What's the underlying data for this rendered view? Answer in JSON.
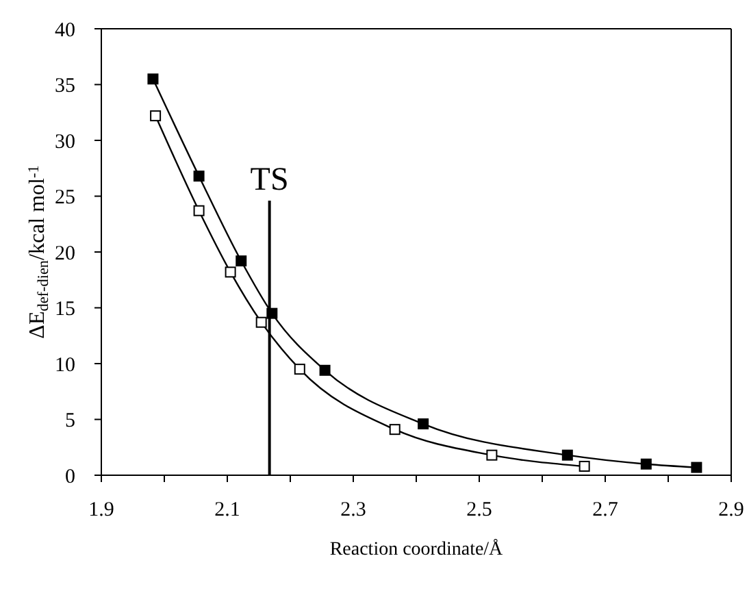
{
  "chart_data": {
    "type": "line",
    "xlabel": "Reaction coordinate/Å",
    "ylabel": "ΔE$_{def-dien}$/kcal mol$^{-1}$",
    "series": [
      {
        "color": "#000000",
        "marker": "square",
        "x": [
          1.982,
          2.055,
          2.122,
          2.171,
          2.255,
          2.411,
          2.64,
          2.765,
          2.845
        ],
        "values": [
          35.5,
          26.8,
          19.2,
          14.5,
          9.4,
          4.6,
          1.8,
          1.0,
          0.7
        ]
      },
      {
        "color": "#000000",
        "marker": "square",
        "x": [
          1.986,
          2.055,
          2.105,
          2.154,
          2.215,
          2.366,
          2.52,
          2.667
        ],
        "values": [
          32.2,
          23.7,
          18.2,
          13.7,
          9.5,
          4.1,
          1.8,
          0.8
        ]
      },
      {
        "color": "#000000",
        "marker": "none",
        "x": [
          2.167,
          2.167
        ],
        "values": [
          0,
          24.6
        ]
      }
    ],
    "annotations": [
      {
        "text": "TS",
        "x": 2.167,
        "y": 24.6
      }
    ],
    "xlim": [
      1.9,
      2.9
    ],
    "ylim": [
      0,
      40
    ],
    "xticks": [
      1.9,
      {
        "value": 2.0,
        "label": null
      },
      2.1,
      {
        "value": 2.2,
        "label": null
      },
      2.3,
      {
        "value": 2.4,
        "label": null
      },
      2.5,
      {
        "value": 2.6,
        "label": null
      },
      2.7,
      {
        "value": 2.8,
        "label": null
      },
      2.9
    ],
    "yticks": [
      0,
      5,
      10,
      15,
      20,
      25,
      30,
      35,
      40
    ]
  }
}
